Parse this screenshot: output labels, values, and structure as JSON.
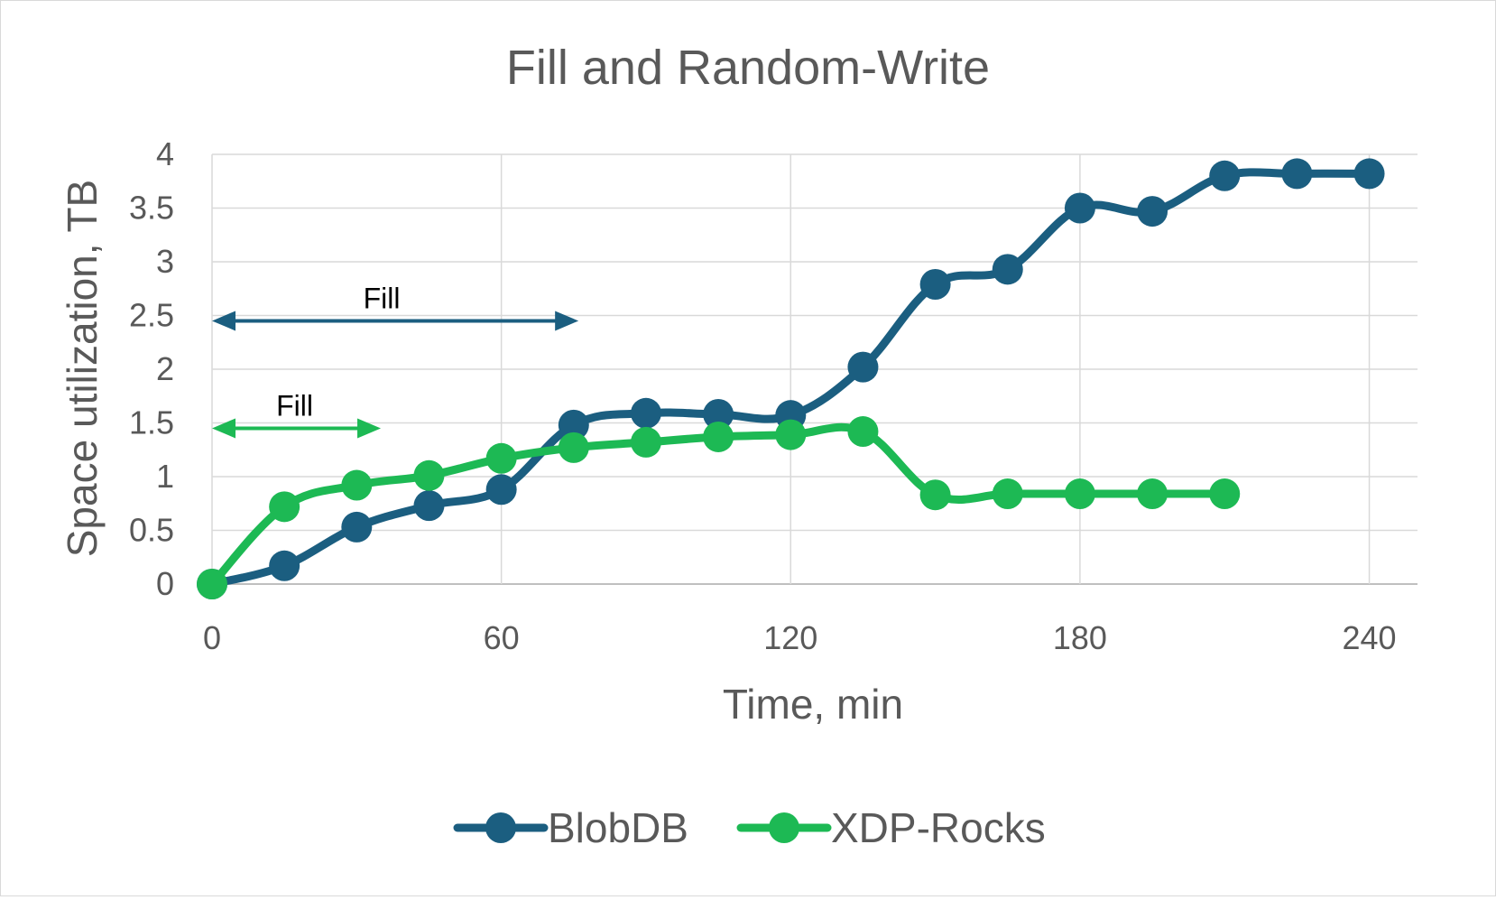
{
  "chart_data": {
    "type": "line",
    "title": "Fill and Random-Write",
    "xlabel": "Time, min",
    "ylabel": "Space utilization, TB",
    "xlim": [
      0,
      250
    ],
    "ylim": [
      0,
      4
    ],
    "x_ticks": [
      0,
      60,
      120,
      180,
      240
    ],
    "y_ticks": [
      0,
      0.5,
      1,
      1.5,
      2,
      2.5,
      3,
      3.5,
      4
    ],
    "grid": true,
    "legend_position": "bottom",
    "series": [
      {
        "name": "BlobDB",
        "color": "#1b5e80",
        "x": [
          0,
          15,
          30,
          45,
          60,
          75,
          90,
          105,
          120,
          135,
          150,
          165,
          180,
          195,
          210,
          225,
          240
        ],
        "values": [
          0,
          0.17,
          0.53,
          0.73,
          0.88,
          1.48,
          1.59,
          1.58,
          1.57,
          2.02,
          2.79,
          2.93,
          3.5,
          3.47,
          3.8,
          3.82,
          3.82
        ]
      },
      {
        "name": "XDP-Rocks",
        "color": "#1db954",
        "x": [
          0,
          15,
          30,
          45,
          60,
          75,
          90,
          105,
          120,
          135,
          150,
          165,
          180,
          195,
          210
        ],
        "values": [
          0,
          0.72,
          0.92,
          1.01,
          1.17,
          1.27,
          1.32,
          1.37,
          1.39,
          1.42,
          0.83,
          0.84,
          0.84,
          0.84,
          0.84
        ]
      }
    ],
    "annotations": [
      {
        "text": "Fill",
        "color": "#1b5e80",
        "x_start": 0,
        "x_end": 76,
        "y": 2.45
      },
      {
        "text": "Fill",
        "color": "#1db954",
        "x_start": 0,
        "x_end": 35,
        "y": 1.45
      }
    ]
  }
}
